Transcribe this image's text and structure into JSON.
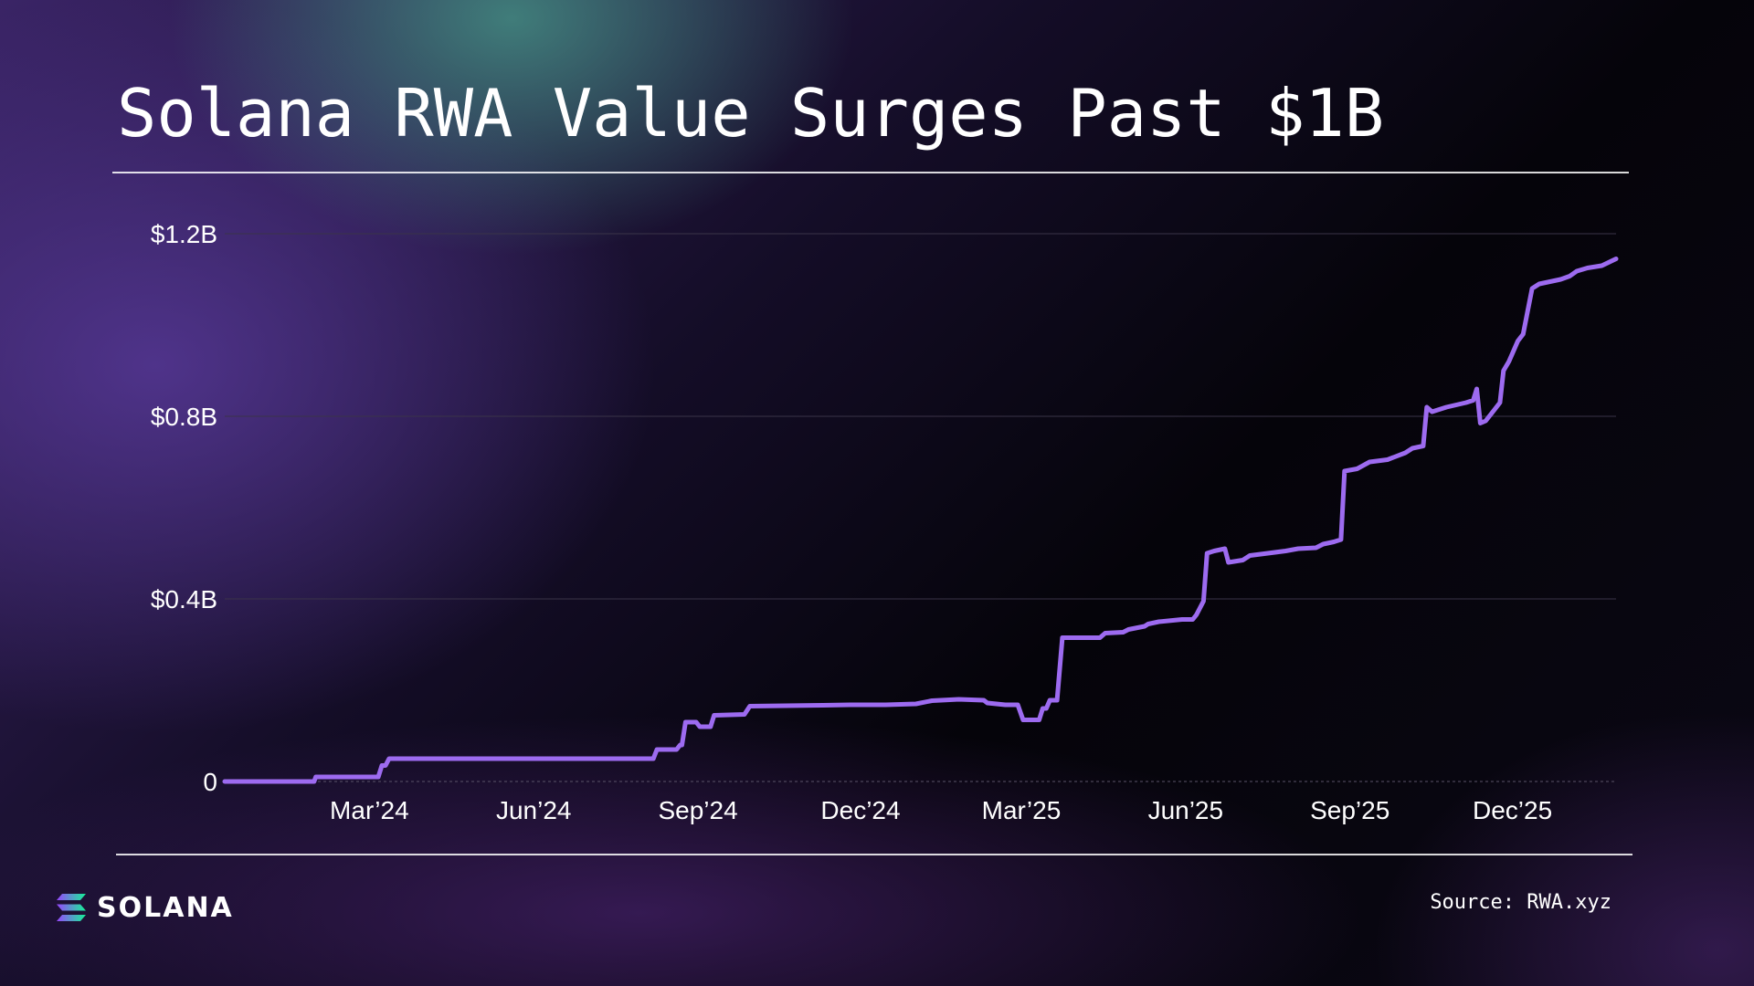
{
  "title": "Solana RWA Value Surges Past $1B",
  "source": "Source: RWA.xyz",
  "brand": {
    "name": "SOLANA",
    "icon": "solana-logo-icon"
  },
  "colors": {
    "line": "#9d6bf0",
    "grid": "#3a3448",
    "background": "#07050d"
  },
  "chart_data": {
    "type": "line",
    "title": "Solana RWA Value Surges Past $1B",
    "xlabel": "",
    "ylabel": "",
    "ylim": [
      0,
      1.2
    ],
    "yticks": [
      {
        "value": 0,
        "label": "0"
      },
      {
        "value": 0.4,
        "label": "$0.4B"
      },
      {
        "value": 0.8,
        "label": "$0.8B"
      },
      {
        "value": 1.2,
        "label": "$1.2B"
      }
    ],
    "xticks": [
      {
        "date": "2024-03-01",
        "label": "Mar’24"
      },
      {
        "date": "2024-06-01",
        "label": "Jun’24"
      },
      {
        "date": "2024-09-01",
        "label": "Sep’24"
      },
      {
        "date": "2024-12-01",
        "label": "Dec’24"
      },
      {
        "date": "2025-03-01",
        "label": "Mar’25"
      },
      {
        "date": "2025-06-01",
        "label": "Jun’25"
      },
      {
        "date": "2025-09-01",
        "label": "Sep’25"
      },
      {
        "date": "2025-12-01",
        "label": "Dec’25"
      }
    ],
    "xlim": [
      "2023-12-11",
      "2026-01-28"
    ],
    "grid": true,
    "series": [
      {
        "points": [
          [
            "2023-12-11",
            0
          ],
          [
            "2024-01-30",
            0
          ],
          [
            "2024-01-31",
            0.01
          ],
          [
            "2024-03-06",
            0.01
          ],
          [
            "2024-03-08",
            0.035
          ],
          [
            "2024-03-10",
            0.035
          ],
          [
            "2024-03-12",
            0.05
          ],
          [
            "2024-08-07",
            0.05
          ],
          [
            "2024-08-09",
            0.07
          ],
          [
            "2024-08-20",
            0.07
          ],
          [
            "2024-08-22",
            0.08
          ],
          [
            "2024-08-23",
            0.08
          ],
          [
            "2024-08-25",
            0.13
          ],
          [
            "2024-08-31",
            0.13
          ],
          [
            "2024-09-02",
            0.12
          ],
          [
            "2024-09-08",
            0.12
          ],
          [
            "2024-09-10",
            0.145
          ],
          [
            "2024-09-27",
            0.147
          ],
          [
            "2024-09-30",
            0.165
          ],
          [
            "2024-11-10",
            0.167
          ],
          [
            "2024-11-25",
            0.168
          ],
          [
            "2024-12-15",
            0.168
          ],
          [
            "2025-01-01",
            0.17
          ],
          [
            "2025-01-10",
            0.177
          ],
          [
            "2025-01-25",
            0.18
          ],
          [
            "2025-02-08",
            0.178
          ],
          [
            "2025-02-10",
            0.172
          ],
          [
            "2025-02-20",
            0.168
          ],
          [
            "2025-02-27",
            0.168
          ],
          [
            "2025-03-02",
            0.135
          ],
          [
            "2025-03-11",
            0.135
          ],
          [
            "2025-03-13",
            0.16
          ],
          [
            "2025-03-15",
            0.16
          ],
          [
            "2025-03-17",
            0.178
          ],
          [
            "2025-03-21",
            0.178
          ],
          [
            "2025-03-24",
            0.315
          ],
          [
            "2025-04-14",
            0.315
          ],
          [
            "2025-04-17",
            0.325
          ],
          [
            "2025-04-27",
            0.327
          ],
          [
            "2025-04-30",
            0.333
          ],
          [
            "2025-05-09",
            0.34
          ],
          [
            "2025-05-11",
            0.345
          ],
          [
            "2025-05-17",
            0.35
          ],
          [
            "2025-05-30",
            0.355
          ],
          [
            "2025-06-05",
            0.355
          ],
          [
            "2025-06-07",
            0.365
          ],
          [
            "2025-06-11",
            0.395
          ],
          [
            "2025-06-13",
            0.5
          ],
          [
            "2025-06-17",
            0.505
          ],
          [
            "2025-06-23",
            0.51
          ],
          [
            "2025-06-25",
            0.48
          ],
          [
            "2025-07-03",
            0.485
          ],
          [
            "2025-07-07",
            0.495
          ],
          [
            "2025-07-17",
            0.5
          ],
          [
            "2025-07-27",
            0.505
          ],
          [
            "2025-08-03",
            0.51
          ],
          [
            "2025-08-13",
            0.512
          ],
          [
            "2025-08-17",
            0.52
          ],
          [
            "2025-08-23",
            0.525
          ],
          [
            "2025-08-27",
            0.53
          ],
          [
            "2025-08-29",
            0.68
          ],
          [
            "2025-09-05",
            0.685
          ],
          [
            "2025-09-12",
            0.7
          ],
          [
            "2025-09-22",
            0.705
          ],
          [
            "2025-10-02",
            0.72
          ],
          [
            "2025-10-06",
            0.73
          ],
          [
            "2025-10-12",
            0.735
          ],
          [
            "2025-10-14",
            0.82
          ],
          [
            "2025-10-17",
            0.81
          ],
          [
            "2025-10-25",
            0.82
          ],
          [
            "2025-11-05",
            0.83
          ],
          [
            "2025-11-09",
            0.835
          ],
          [
            "2025-11-11",
            0.86
          ],
          [
            "2025-11-13",
            0.785
          ],
          [
            "2025-11-16",
            0.79
          ],
          [
            "2025-11-21",
            0.815
          ],
          [
            "2025-11-24",
            0.83
          ],
          [
            "2025-11-26",
            0.9
          ],
          [
            "2025-11-29",
            0.92
          ],
          [
            "2025-12-04",
            0.965
          ],
          [
            "2025-12-07",
            0.98
          ],
          [
            "2025-12-09",
            1.02
          ],
          [
            "2025-12-12",
            1.08
          ],
          [
            "2025-12-16",
            1.09
          ],
          [
            "2025-12-22",
            1.095
          ],
          [
            "2025-12-28",
            1.1
          ],
          [
            "2026-01-02",
            1.107
          ],
          [
            "2026-01-06",
            1.118
          ],
          [
            "2026-01-12",
            1.125
          ],
          [
            "2026-01-20",
            1.13
          ],
          [
            "2026-01-28",
            1.145
          ]
        ]
      }
    ]
  }
}
